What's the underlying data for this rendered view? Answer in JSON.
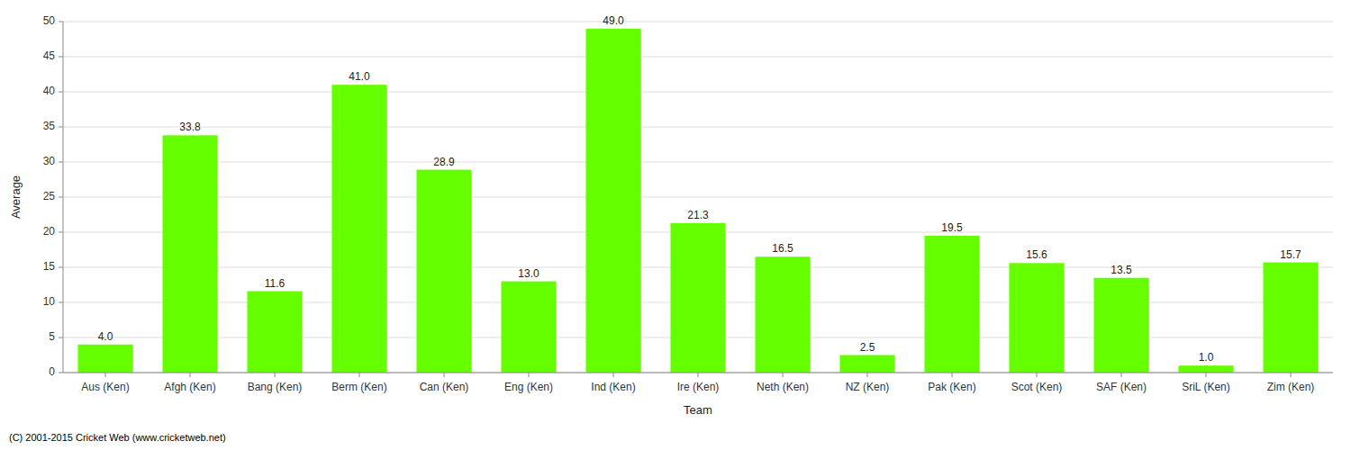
{
  "chart_data": {
    "type": "bar",
    "xlabel": "Team",
    "ylabel": "Average",
    "footnote": "(C) 2001-2015 Cricket Web (www.cricketweb.net)",
    "categories": [
      "Aus (Ken)",
      "Afgh (Ken)",
      "Bang (Ken)",
      "Berm (Ken)",
      "Can (Ken)",
      "Eng (Ken)",
      "Ind (Ken)",
      "Ire (Ken)",
      "Neth (Ken)",
      "NZ (Ken)",
      "Pak (Ken)",
      "Scot (Ken)",
      "SAF (Ken)",
      "SriL (Ken)",
      "Zim (Ken)"
    ],
    "values": [
      4.0,
      33.8,
      11.6,
      41.0,
      28.9,
      13.0,
      49.0,
      21.3,
      16.5,
      2.5,
      19.5,
      15.6,
      13.5,
      1.0,
      15.7
    ],
    "value_labels": [
      "4.0",
      "33.8",
      "11.6",
      "41.0",
      "28.9",
      "13.0",
      "49.0",
      "21.3",
      "16.5",
      "2.5",
      "19.5",
      "15.6",
      "13.5",
      "1.0",
      "15.7"
    ],
    "color": "#66ff00",
    "ylim": [
      0,
      50
    ],
    "yticks": [
      0,
      5,
      10,
      15,
      20,
      25,
      30,
      35,
      40,
      45,
      50
    ],
    "grid": true,
    "data_labels": true
  }
}
